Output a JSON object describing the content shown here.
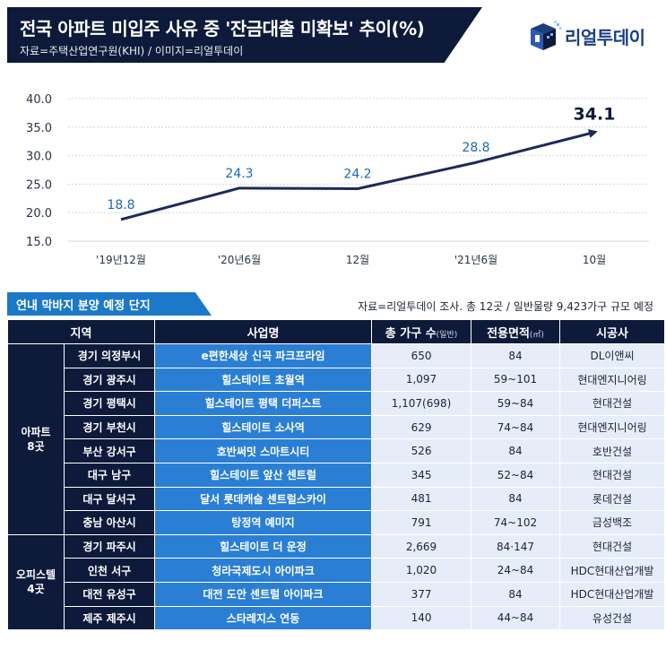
{
  "header": {
    "title": "전국 아파트 미입주 사유 중 '잔금대출 미확보' 추이(%)",
    "source": "자료=주택산업연구원(KHI)  / 이미지=리얼투데이"
  },
  "logo": {
    "text": "리얼투데이",
    "icon": "real-today-cube-logo",
    "color": "#1a3e82"
  },
  "chart_data": {
    "type": "line",
    "title": "전국 아파트 미입주 사유 중 '잔금대출 미확보' 추이(%)",
    "categories": [
      "'19년12월",
      "'20년6월",
      "12월",
      "'21년6월",
      "10월"
    ],
    "values": [
      18.8,
      24.3,
      24.2,
      28.8,
      34.1
    ],
    "data_labels": [
      "18.8",
      "24.3",
      "24.2",
      "28.8",
      "34.1"
    ],
    "y_ticks": [
      "40.0",
      "35.0",
      "30.0",
      "25.0",
      "20.0",
      "15.0"
    ],
    "ylim": [
      15,
      40
    ],
    "grid": true,
    "line_color": "#1a2b5a",
    "label_color": "#1a6ab0",
    "last_label_color": "#0d1a3a"
  },
  "table": {
    "banner": "연내 막바지 분양 예정 단지",
    "source": "자료=리얼투데이 조사. 총 12곳 / 일반물량 9,423가구 규모 예정",
    "headers": {
      "region": "지역",
      "project": "사업명",
      "households": "총 가구 수",
      "households_note": "(일반)",
      "area": "전용면적",
      "area_note": "(㎡)",
      "builder": "시공사"
    },
    "groups": [
      {
        "label": "아파트\n8곳",
        "rows": [
          {
            "region": "경기 의정부시",
            "project": "e편한세상 신곡 파크프라임",
            "households": "650",
            "area": "84",
            "builder": "DL이앤씨"
          },
          {
            "region": "경기 광주시",
            "project": "힐스테이트 초월역",
            "households": "1,097",
            "area": "59~101",
            "builder": "현대엔지니어링"
          },
          {
            "region": "경기 평택시",
            "project": "힐스테이트 평택 더퍼스트",
            "households": "1,107(698)",
            "area": "59~84",
            "builder": "현대건설"
          },
          {
            "region": "경기 부천시",
            "project": "힐스테이트 소사역",
            "households": "629",
            "area": "74~84",
            "builder": "현대엔지니어링"
          },
          {
            "region": "부산 강서구",
            "project": "호반써밋 스마트시티",
            "households": "526",
            "area": "84",
            "builder": "호반건설"
          },
          {
            "region": "대구 남구",
            "project": "힐스테이트 앞산 센트럴",
            "households": "345",
            "area": "52~84",
            "builder": "현대건설"
          },
          {
            "region": "대구 달서구",
            "project": "달서 롯데캐슬 센트럴스카이",
            "households": "481",
            "area": "84",
            "builder": "롯데건설"
          },
          {
            "region": "충남 아산시",
            "project": "탕정역 예미지",
            "households": "791",
            "area": "74~102",
            "builder": "금성백조"
          }
        ]
      },
      {
        "label": "오피스텔\n4곳",
        "rows": [
          {
            "region": "경기 파주시",
            "project": "힐스테이트 더 운정",
            "households": "2,669",
            "area": "84·147",
            "builder": "현대건설"
          },
          {
            "region": "인천 서구",
            "project": "청라국제도시 아이파크",
            "households": "1,020",
            "area": "24~84",
            "builder": "HDC현대산업개발"
          },
          {
            "region": "대전 유성구",
            "project": "대전 도안 센트럴 아이파크",
            "households": "377",
            "area": "84",
            "builder": "HDC현대산업개발"
          },
          {
            "region": "제주 제주시",
            "project": "스타레지스 연동",
            "households": "140",
            "area": "44~84",
            "builder": "유성건설"
          }
        ]
      }
    ]
  }
}
